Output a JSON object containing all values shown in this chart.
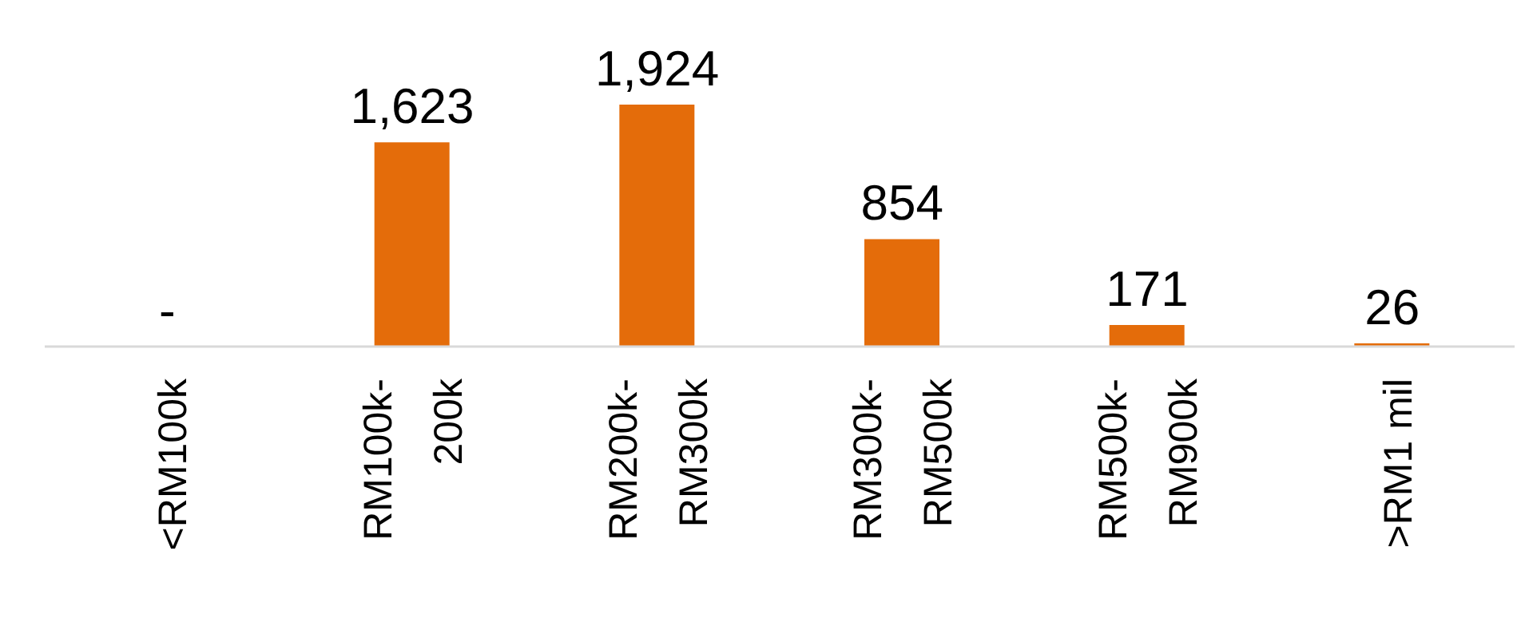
{
  "chart_data": {
    "type": "bar",
    "categories": [
      "<RM100k",
      "RM100k-200k",
      "RM200k-RM300k",
      "RM300k-RM500k",
      "RM500k-RM900k",
      ">RM1 mil"
    ],
    "values": [
      0,
      1623,
      1924,
      854,
      171,
      26
    ],
    "value_labels": [
      "-",
      "1,623",
      "1,924",
      "854",
      "171",
      "26"
    ],
    "color": "#e46c0a",
    "grid": false,
    "legend": false
  }
}
